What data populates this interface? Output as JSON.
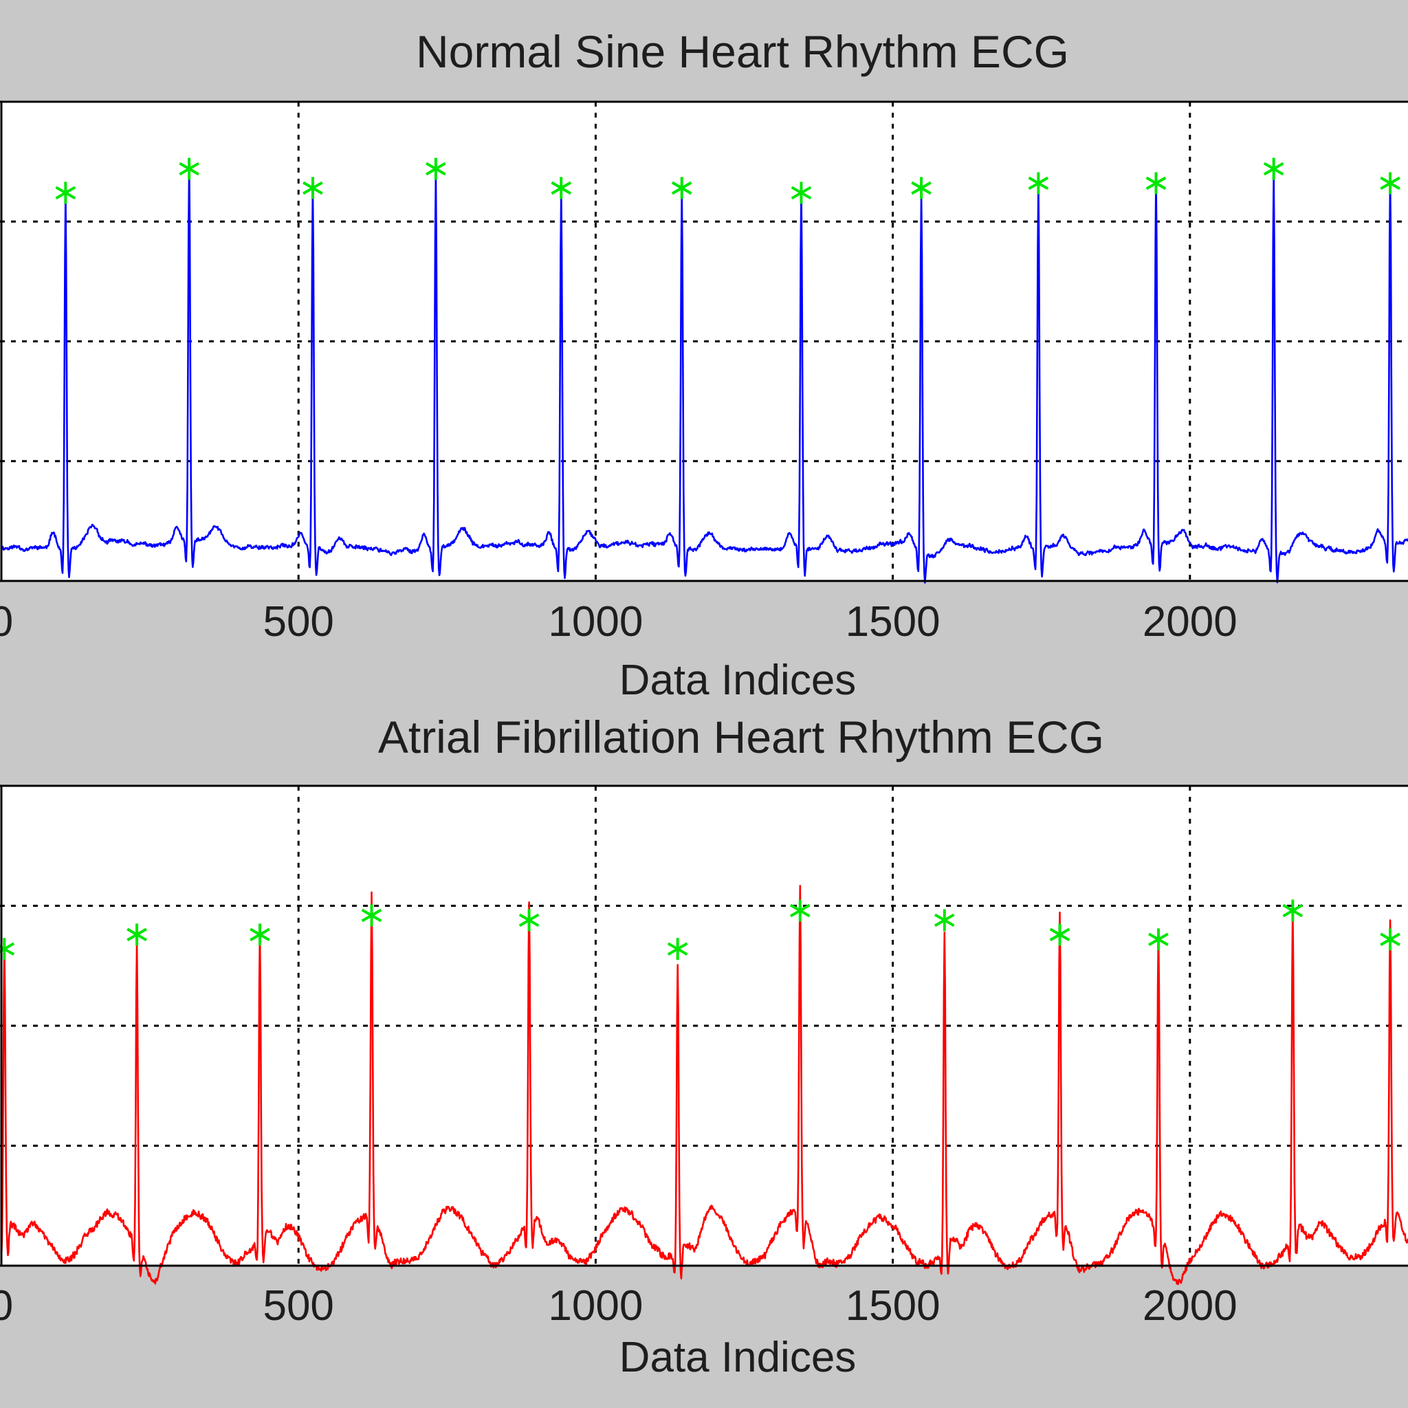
{
  "chart_data": [
    {
      "type": "line",
      "title": "Normal Sine Heart Rhythm ECG",
      "xlabel": "Data Indices",
      "ylabel": "",
      "xlim": [
        0,
        2500
      ],
      "x_ticks": [
        0,
        500,
        1000,
        1500,
        2000
      ],
      "x_tick_labels": [
        "0",
        "500",
        "1000",
        "1500",
        "2000"
      ],
      "grid": true,
      "colors": {
        "signal": "#0000ff",
        "peak_marker": "#00e600"
      },
      "peak_marker": "*",
      "r_peak_indices": [
        108,
        316,
        524,
        731,
        942,
        1145,
        1346,
        1548,
        1745,
        1943,
        2141,
        2337
      ],
      "r_peak_levels": [
        0.81,
        0.86,
        0.82,
        0.86,
        0.82,
        0.82,
        0.81,
        0.82,
        0.83,
        0.83,
        0.86,
        0.83
      ],
      "baseline_level": 0.07
    },
    {
      "type": "line",
      "title": "Atrial Fibrillation Heart Rhythm ECG",
      "xlabel": "Data Indices",
      "ylabel": "",
      "xlim": [
        0,
        2500
      ],
      "x_ticks": [
        0,
        500,
        1000,
        1500,
        2000
      ],
      "x_tick_labels": [
        "0",
        "500",
        "1000",
        "1500",
        "2000"
      ],
      "grid": true,
      "colors": {
        "signal": "#ff0000",
        "peak_marker": "#00e600"
      },
      "peak_marker": "*",
      "r_peak_indices": [
        5,
        228,
        435,
        623,
        888,
        1138,
        1344,
        1587,
        1781,
        1947,
        2173,
        2337
      ],
      "r_peak_levels": [
        0.66,
        0.69,
        0.69,
        0.73,
        0.72,
        0.66,
        0.74,
        0.72,
        0.69,
        0.68,
        0.74,
        0.68
      ],
      "baseline_level": 0.06
    }
  ]
}
